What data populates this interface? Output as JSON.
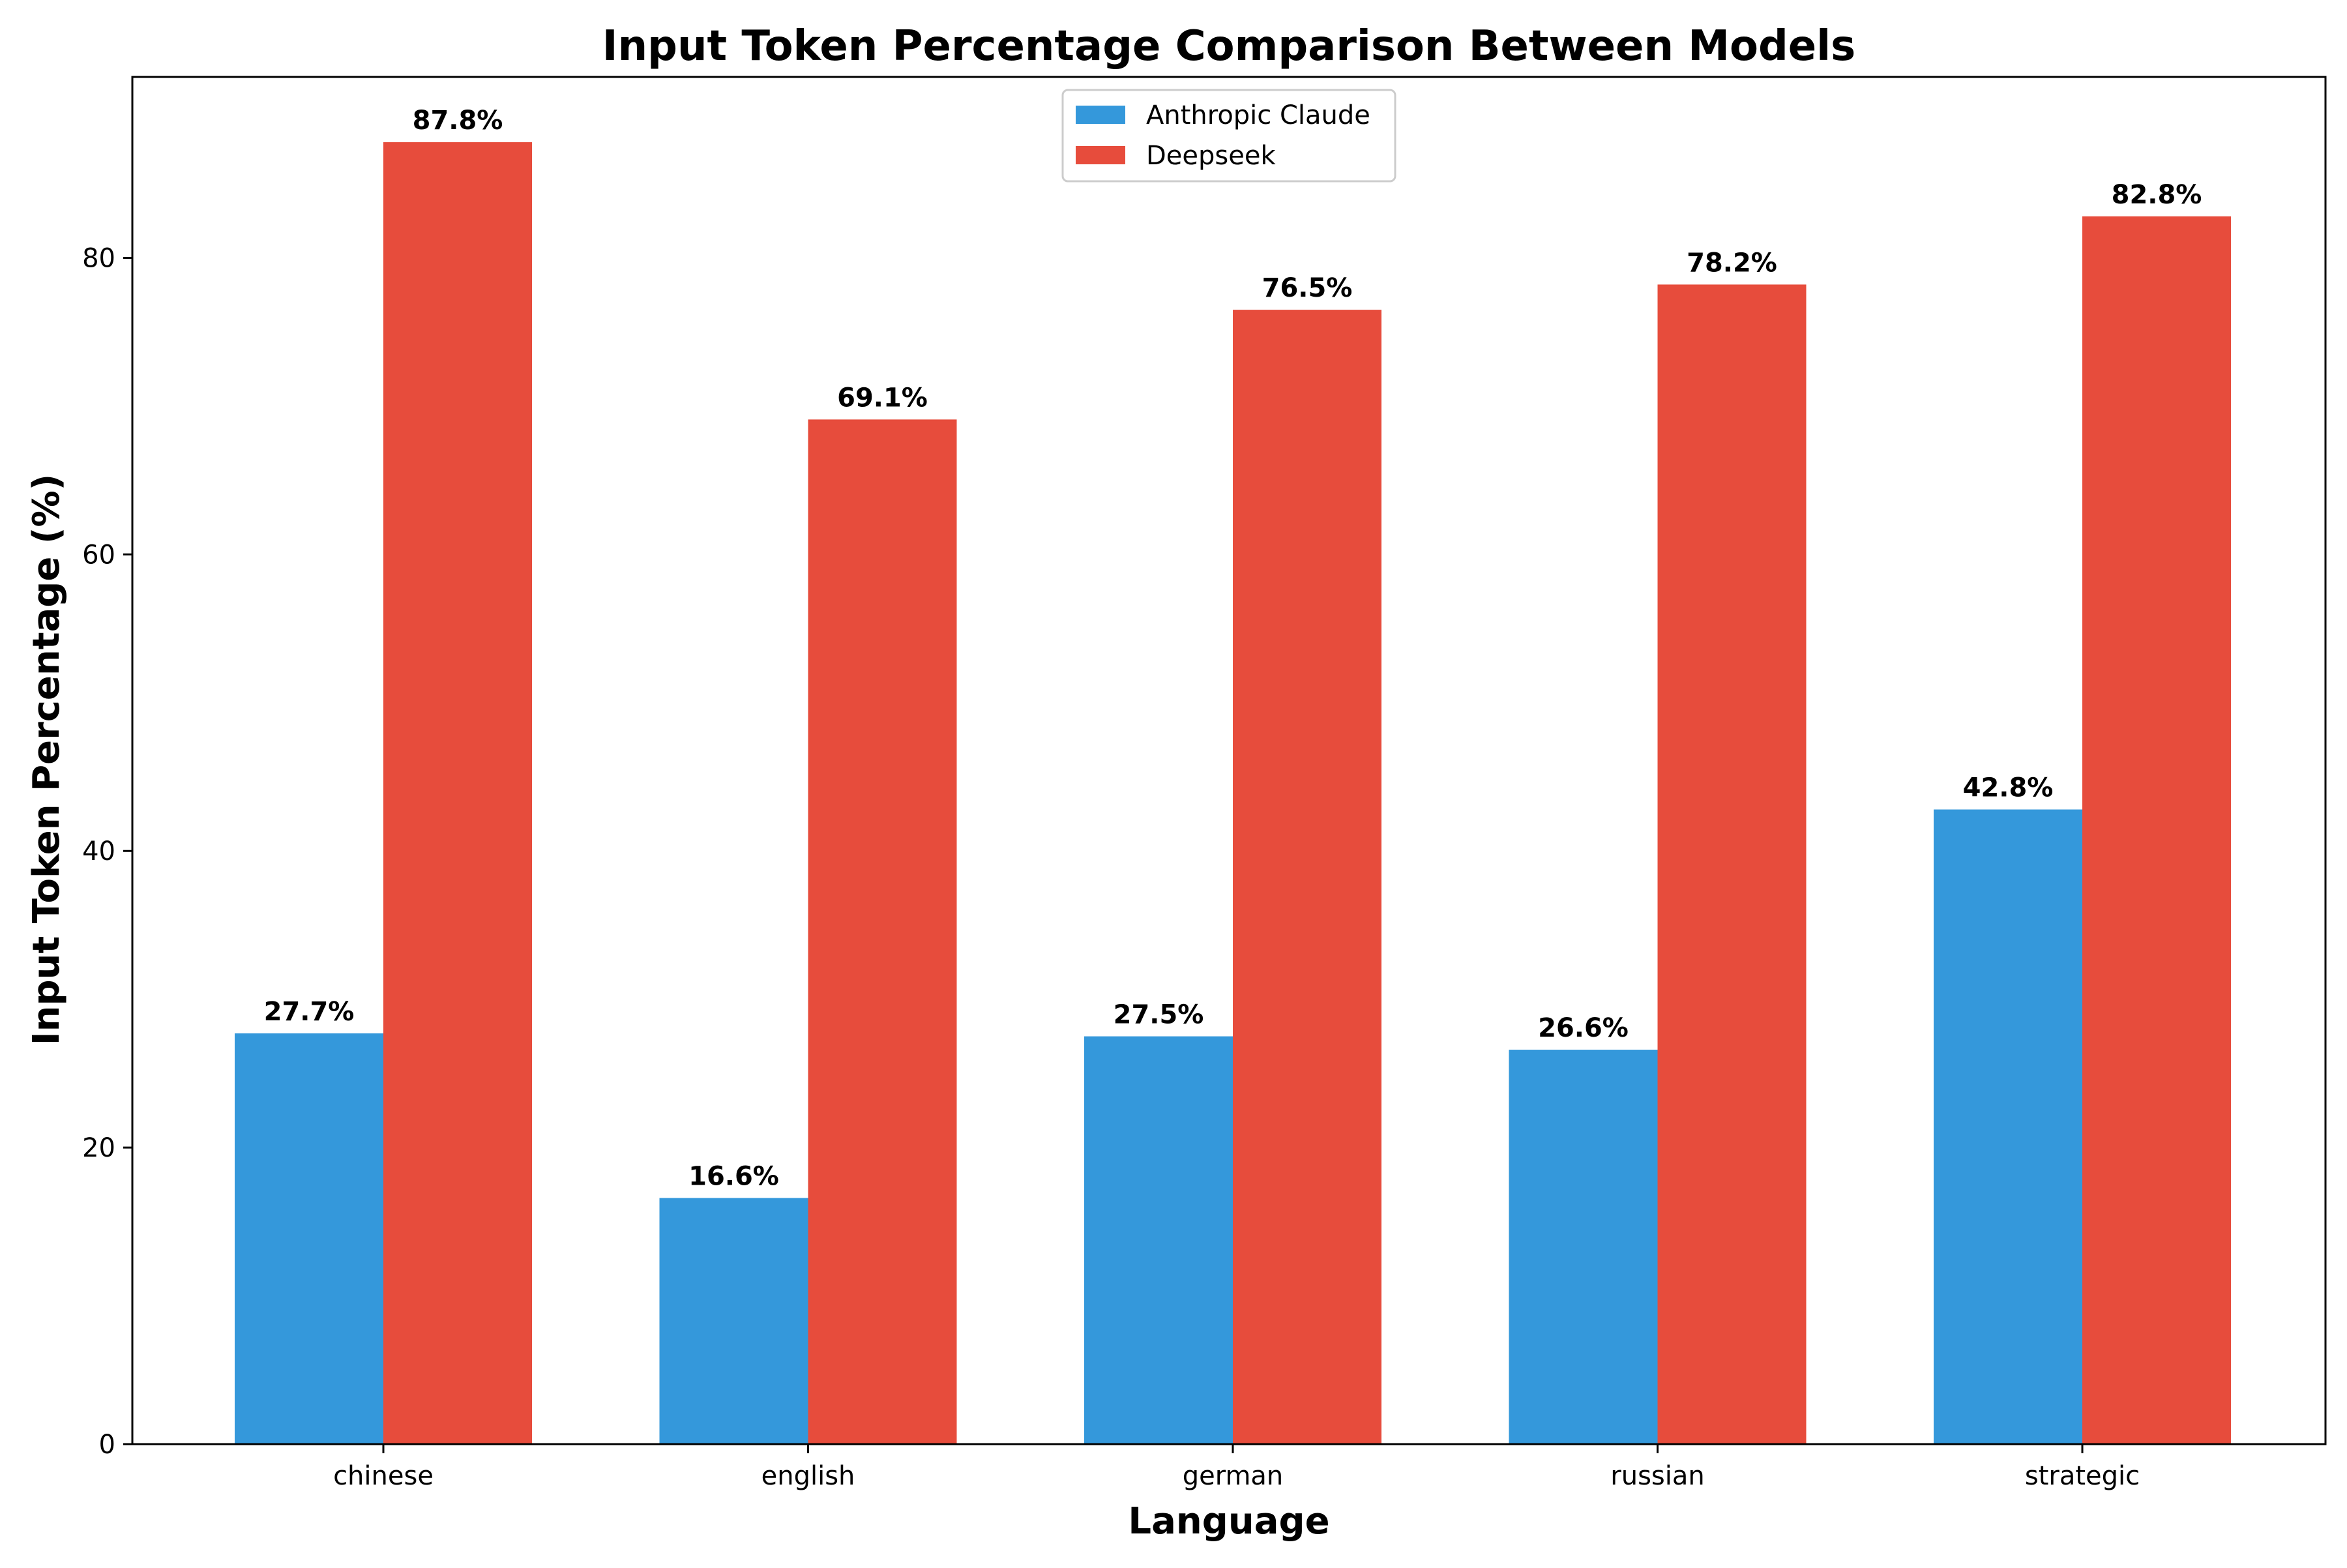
{
  "chart_data": {
    "type": "bar",
    "title": "Input Token Percentage Comparison Between Models",
    "xlabel": "Language",
    "ylabel": "Input Token Percentage (%)",
    "categories": [
      "chinese",
      "english",
      "german",
      "russian",
      "strategic"
    ],
    "series": [
      {
        "name": "Anthropic Claude",
        "color": "#3498db",
        "values": [
          27.7,
          16.6,
          27.5,
          26.6,
          42.8
        ],
        "labels": [
          "27.7%",
          "16.6%",
          "27.5%",
          "26.6%",
          "42.8%"
        ]
      },
      {
        "name": "Deepseek",
        "color": "#e74c3c",
        "values": [
          87.8,
          69.1,
          76.5,
          78.2,
          82.8
        ],
        "labels": [
          "87.8%",
          "69.1%",
          "76.5%",
          "78.2%",
          "82.8%"
        ]
      }
    ],
    "yticks": [
      0,
      20,
      40,
      60,
      80
    ],
    "ylim": [
      0,
      92.2
    ],
    "grid": false,
    "legend_position": "top-center"
  }
}
